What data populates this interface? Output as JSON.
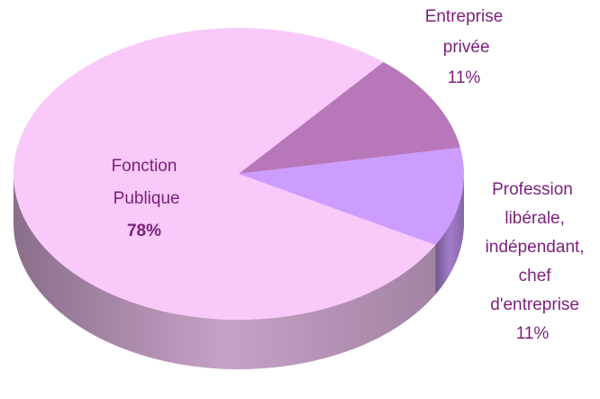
{
  "chart_data": {
    "type": "pie",
    "categories": [
      "Fonction Publique",
      "Entreprise privée",
      "Profession libérale, indépendant, chef d'entreprise"
    ],
    "values": [
      78,
      11,
      11
    ],
    "value_labels": [
      "78%",
      "11%",
      "11%"
    ],
    "colors": [
      "#f9c9f9",
      "#b877b8",
      "#cc9cff"
    ]
  }
}
